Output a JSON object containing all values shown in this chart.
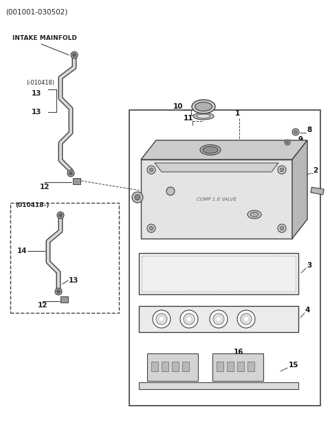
{
  "title": "(001001-030502)",
  "bg_color": "#ffffff",
  "line_color": "#404040",
  "fig_width": 4.8,
  "fig_height": 6.21,
  "dpi": 100
}
